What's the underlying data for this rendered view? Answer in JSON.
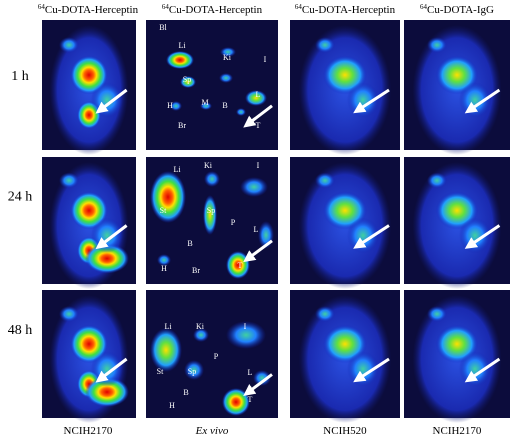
{
  "column_headers": [
    {
      "isotope": "64",
      "name": "Cu-DOTA-Herceptin"
    },
    {
      "isotope": "64",
      "name": "Cu-DOTA-Herceptin"
    },
    {
      "isotope": "64",
      "name": "Cu-DOTA-Herceptin"
    },
    {
      "isotope": "64",
      "name": "Cu-DOTA-IgG"
    }
  ],
  "row_labels": [
    "1 h",
    "24 h",
    "48 h"
  ],
  "ex_vivo_labels": [
    [
      "Bl",
      "Li",
      "Ki",
      "I",
      "Sp",
      "H",
      "M",
      "B",
      "L",
      "Br",
      "T"
    ],
    [
      "Li",
      "Ki",
      "I",
      "St",
      "Sp",
      "P",
      "L",
      "B",
      "H",
      "Br",
      "T"
    ],
    [
      "Li",
      "Ki",
      "I",
      "P",
      "St",
      "Sp",
      "L",
      "B",
      "H",
      "T"
    ]
  ],
  "column_footers": [
    "NCIH2170",
    "Ex vivo",
    "NCIH520",
    "NCIH2170"
  ]
}
